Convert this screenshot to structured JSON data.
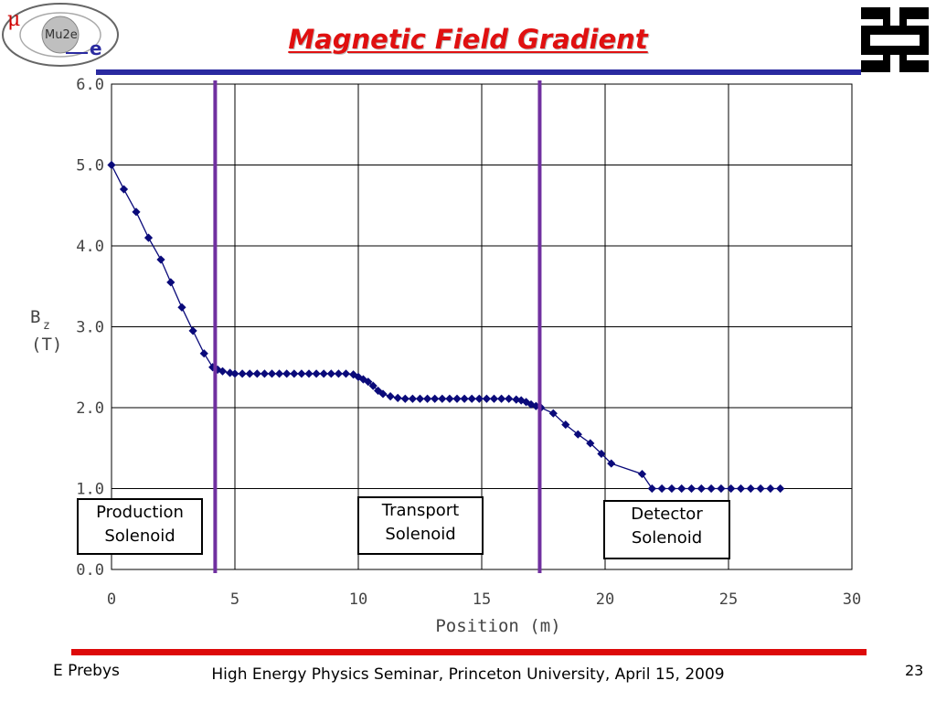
{
  "slide": {
    "title": "Magnetic Field Gradient",
    "footer_left": "E Prebys",
    "footer_center": "High Energy Physics Seminar, Princeton University, April 15, 2009",
    "page_number": "23"
  },
  "logo": {
    "mu": "μ",
    "name": "Mu2e",
    "e": "e"
  },
  "colors": {
    "title": "#e01010",
    "top_rule": "#2a2aa0",
    "bottom_rule": "#dd0a0a",
    "series": "#0a0a7a",
    "markers": "#7030a0"
  },
  "annotations": [
    {
      "line1": "Production",
      "line2": "Solenoid"
    },
    {
      "line1": "Transport",
      "line2": "Solenoid"
    },
    {
      "line1": "Detector",
      "line2": "Solenoid"
    }
  ],
  "chart_data": {
    "type": "line",
    "xlabel": "Position (m)",
    "ylabel_main": "B",
    "ylabel_sub": "z",
    "ylabel_unit": "(T)",
    "xlim": [
      0,
      30
    ],
    "ylim": [
      0,
      6
    ],
    "xticks": [
      0,
      5,
      10,
      15,
      20,
      25,
      30
    ],
    "xtick_labels": [
      "0",
      "5",
      "10",
      "15",
      "20",
      "25",
      "30"
    ],
    "yticks": [
      0,
      1,
      2,
      3,
      4,
      5,
      6
    ],
    "ytick_labels": [
      "0.0",
      "1.0",
      "2.0",
      "3.0",
      "4.0",
      "5.0",
      "6.0"
    ],
    "grid": true,
    "vertical_markers": [
      4.2,
      17.35
    ],
    "series": [
      {
        "x": [
          0,
          0.5,
          1.0,
          1.5,
          2.0,
          2.4,
          2.85,
          3.3,
          3.75,
          4.1,
          4.3,
          4.5,
          4.8,
          5.0,
          5.3,
          5.6,
          5.9,
          6.2,
          6.5,
          6.8,
          7.1,
          7.4,
          7.7,
          8.0,
          8.3,
          8.6,
          8.9,
          9.2,
          9.5,
          9.8,
          10.0,
          10.2,
          10.4,
          10.6,
          10.8,
          11.0,
          11.3,
          11.6,
          11.9,
          12.2,
          12.5,
          12.8,
          13.1,
          13.4,
          13.7,
          14.0,
          14.3,
          14.6,
          14.9,
          15.2,
          15.5,
          15.8,
          16.1,
          16.4,
          16.6,
          16.8,
          17.0,
          17.2,
          17.4,
          17.9,
          18.4,
          18.9,
          19.4,
          19.85,
          20.25,
          21.5,
          21.9,
          22.3,
          22.7,
          23.1,
          23.5,
          23.9,
          24.3,
          24.7,
          25.1,
          25.5,
          25.9,
          26.3,
          26.7,
          27.1
        ],
        "y": [
          5.0,
          4.7,
          4.42,
          4.1,
          3.83,
          3.55,
          3.24,
          2.95,
          2.67,
          2.5,
          2.47,
          2.45,
          2.43,
          2.42,
          2.42,
          2.42,
          2.42,
          2.42,
          2.42,
          2.42,
          2.42,
          2.42,
          2.42,
          2.42,
          2.42,
          2.42,
          2.42,
          2.42,
          2.42,
          2.41,
          2.38,
          2.35,
          2.32,
          2.27,
          2.21,
          2.17,
          2.14,
          2.12,
          2.11,
          2.11,
          2.11,
          2.11,
          2.11,
          2.11,
          2.11,
          2.11,
          2.11,
          2.11,
          2.11,
          2.11,
          2.11,
          2.11,
          2.11,
          2.1,
          2.09,
          2.07,
          2.04,
          2.02,
          2.0,
          1.93,
          1.79,
          1.67,
          1.56,
          1.43,
          1.31,
          1.18,
          1.0,
          1.0,
          1.0,
          1.0,
          1.0,
          1.0,
          1.0,
          1.0,
          1.0,
          1.0,
          1.0,
          1.0,
          1.0,
          1.0
        ]
      }
    ]
  }
}
